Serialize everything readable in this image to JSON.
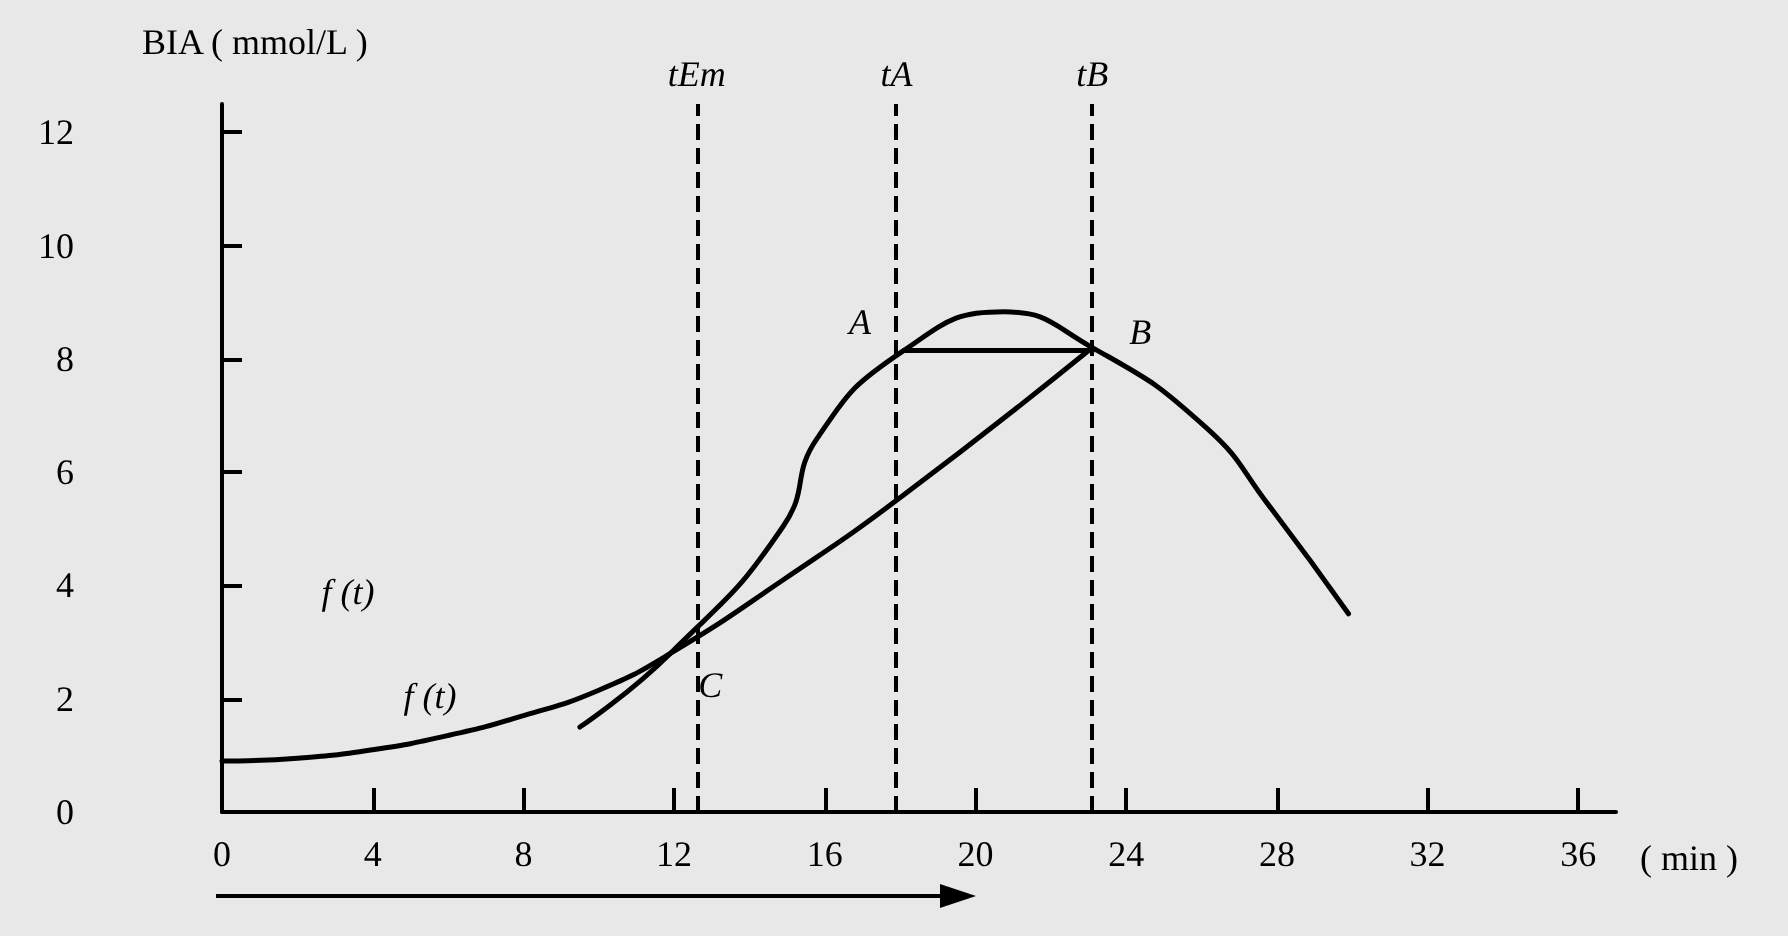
{
  "chart_data": {
    "type": "line",
    "xlabel": "( min )",
    "ylabel": "BIA ( mmol/L )",
    "xlim": [
      0,
      37
    ],
    "ylim": [
      0,
      12.5
    ],
    "xticks": [
      0,
      4,
      8,
      12,
      16,
      20,
      24,
      28,
      32,
      36
    ],
    "yticks": [
      0,
      2,
      4,
      6,
      8,
      10,
      12
    ],
    "grid": false,
    "marker": "none",
    "series": [
      {
        "color": "#000000",
        "x": [
          0,
          2,
          4,
          6,
          8,
          10,
          11.9,
          14.9,
          18.1,
          23.1
        ],
        "values": [
          0.9,
          0.95,
          1.1,
          1.35,
          1.7,
          2.15,
          2.8,
          4.1,
          5.6,
          8.2
        ]
      },
      {
        "color": "#000000",
        "x": [
          9.5,
          11.9,
          14.9,
          15.8,
          18.1,
          20.75,
          23.1,
          26.1,
          27.8,
          29.9
        ],
        "values": [
          1.5,
          2.8,
          5.05,
          6.6,
          8.15,
          8.83,
          8.2,
          6.8,
          5.4,
          3.5
        ]
      },
      {
        "color": "#000000",
        "x": [
          18.1,
          23.1
        ],
        "values": [
          8.15,
          8.15
        ]
      }
    ],
    "ref_lines": [
      {
        "axis": "x",
        "value": 12.6,
        "label": "tEm",
        "line_style": "dashed",
        "color": "#000000"
      },
      {
        "axis": "x",
        "value": 17.9,
        "label": "tA",
        "line_style": "dashed",
        "color": "#000000"
      },
      {
        "axis": "x",
        "value": 23.1,
        "label": "tB",
        "line_style": "dashed",
        "color": "#000000"
      }
    ],
    "annotations": [
      {
        "text": "A",
        "x": 18.1,
        "y": 8.15
      },
      {
        "text": "B",
        "x": 23.1,
        "y": 8.2
      },
      {
        "text": "C",
        "x": 11.9,
        "y": 2.8
      },
      "f (t)",
      "f (t)"
    ]
  }
}
